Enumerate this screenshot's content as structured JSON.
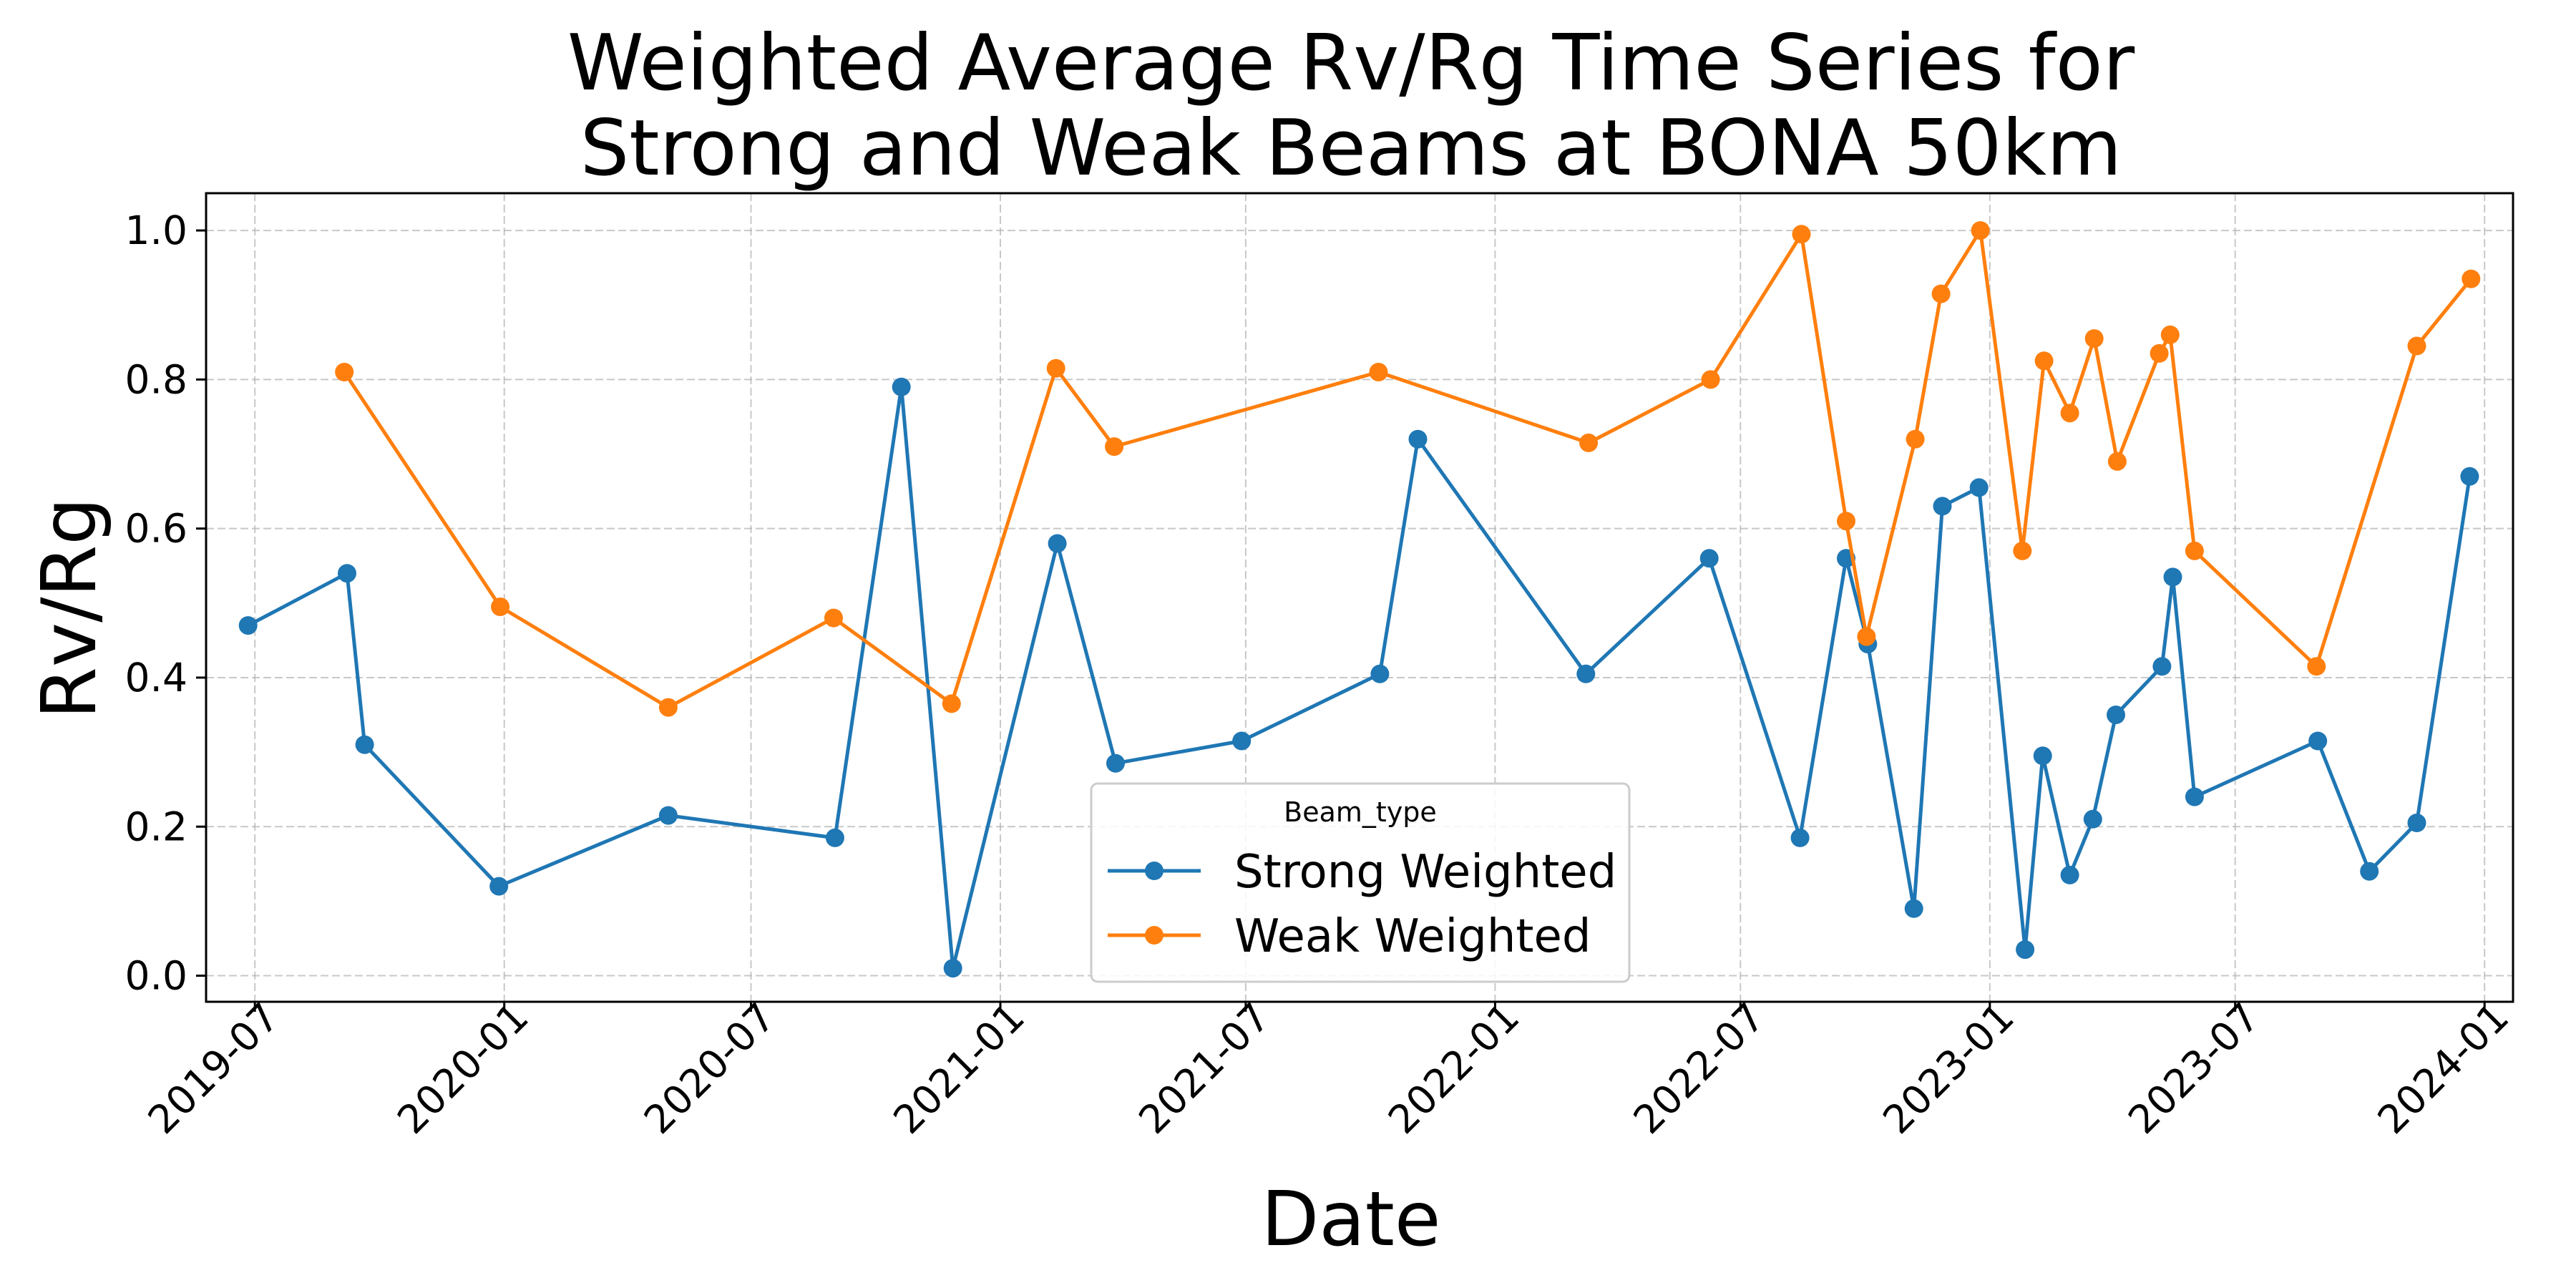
{
  "chart_data": {
    "type": "line",
    "title_lines": [
      "Weighted Average Rv/Rg Time Series for",
      "Strong and Weak Beams at BONA 50km"
    ],
    "xlabel": "Date",
    "ylabel": "Rv/Rg",
    "x_ticks": [
      "2019-07",
      "2020-01",
      "2020-07",
      "2021-01",
      "2021-07",
      "2022-01",
      "2022-07",
      "2023-01",
      "2023-07",
      "2024-01"
    ],
    "y_ticks": [
      "0.0",
      "0.2",
      "0.4",
      "0.6",
      "0.8",
      "1.0"
    ],
    "xlim": [
      "2019-05-26",
      "2024-01-22"
    ],
    "ylim": [
      -0.035,
      1.05
    ],
    "grid": true,
    "legend": {
      "title": "Beam_type",
      "placement": "bottom-center"
    },
    "colors": {
      "strong": "#1f77b4",
      "weak": "#ff7f0e"
    },
    "series": [
      {
        "name": "Strong Weighted",
        "color": "#1f77b4",
        "points": [
          [
            "2019-06-26",
            0.47
          ],
          [
            "2019-09-07",
            0.54
          ],
          [
            "2019-09-20",
            0.31
          ],
          [
            "2019-12-28",
            0.12
          ],
          [
            "2020-05-01",
            0.215
          ],
          [
            "2020-09-01",
            0.185
          ],
          [
            "2020-10-20",
            0.79
          ],
          [
            "2020-11-27",
            0.01
          ],
          [
            "2021-02-12",
            0.58
          ],
          [
            "2021-03-27",
            0.285
          ],
          [
            "2021-06-28",
            0.315
          ],
          [
            "2021-10-08",
            0.405
          ],
          [
            "2021-11-05",
            0.72
          ],
          [
            "2022-03-09",
            0.405
          ],
          [
            "2022-06-08",
            0.56
          ],
          [
            "2022-08-14",
            0.185
          ],
          [
            "2022-09-17",
            0.56
          ],
          [
            "2022-10-03",
            0.445
          ],
          [
            "2022-11-06",
            0.09
          ],
          [
            "2022-11-27",
            0.63
          ],
          [
            "2022-12-24",
            0.655
          ],
          [
            "2023-01-27",
            0.035
          ],
          [
            "2023-02-09",
            0.295
          ],
          [
            "2023-03-01",
            0.135
          ],
          [
            "2023-03-18",
            0.21
          ],
          [
            "2023-04-04",
            0.35
          ],
          [
            "2023-05-08",
            0.415
          ],
          [
            "2023-05-16",
            0.535
          ],
          [
            "2023-06-01",
            0.24
          ],
          [
            "2023-08-31",
            0.315
          ],
          [
            "2023-10-08",
            0.14
          ],
          [
            "2023-11-12",
            0.205
          ],
          [
            "2023-12-21",
            0.67
          ]
        ]
      },
      {
        "name": "Weak Weighted",
        "color": "#ff7f0e",
        "points": [
          [
            "2019-09-05",
            0.81
          ],
          [
            "2019-12-29",
            0.495
          ],
          [
            "2020-05-01",
            0.36
          ],
          [
            "2020-08-31",
            0.48
          ],
          [
            "2020-11-26",
            0.365
          ],
          [
            "2021-02-11",
            0.815
          ],
          [
            "2021-03-26",
            0.71
          ],
          [
            "2021-10-07",
            0.81
          ],
          [
            "2022-03-11",
            0.715
          ],
          [
            "2022-06-09",
            0.8
          ],
          [
            "2022-08-15",
            0.995
          ],
          [
            "2022-09-17",
            0.61
          ],
          [
            "2022-10-02",
            0.455
          ],
          [
            "2022-11-07",
            0.72
          ],
          [
            "2022-11-26",
            0.915
          ],
          [
            "2022-12-25",
            1.0
          ],
          [
            "2023-01-25",
            0.57
          ],
          [
            "2023-02-10",
            0.825
          ],
          [
            "2023-03-01",
            0.755
          ],
          [
            "2023-03-19",
            0.855
          ],
          [
            "2023-04-05",
            0.69
          ],
          [
            "2023-05-06",
            0.835
          ],
          [
            "2023-05-14",
            0.86
          ],
          [
            "2023-06-01",
            0.57
          ],
          [
            "2023-08-30",
            0.415
          ],
          [
            "2023-11-12",
            0.845
          ],
          [
            "2023-12-22",
            0.935
          ]
        ]
      }
    ]
  }
}
